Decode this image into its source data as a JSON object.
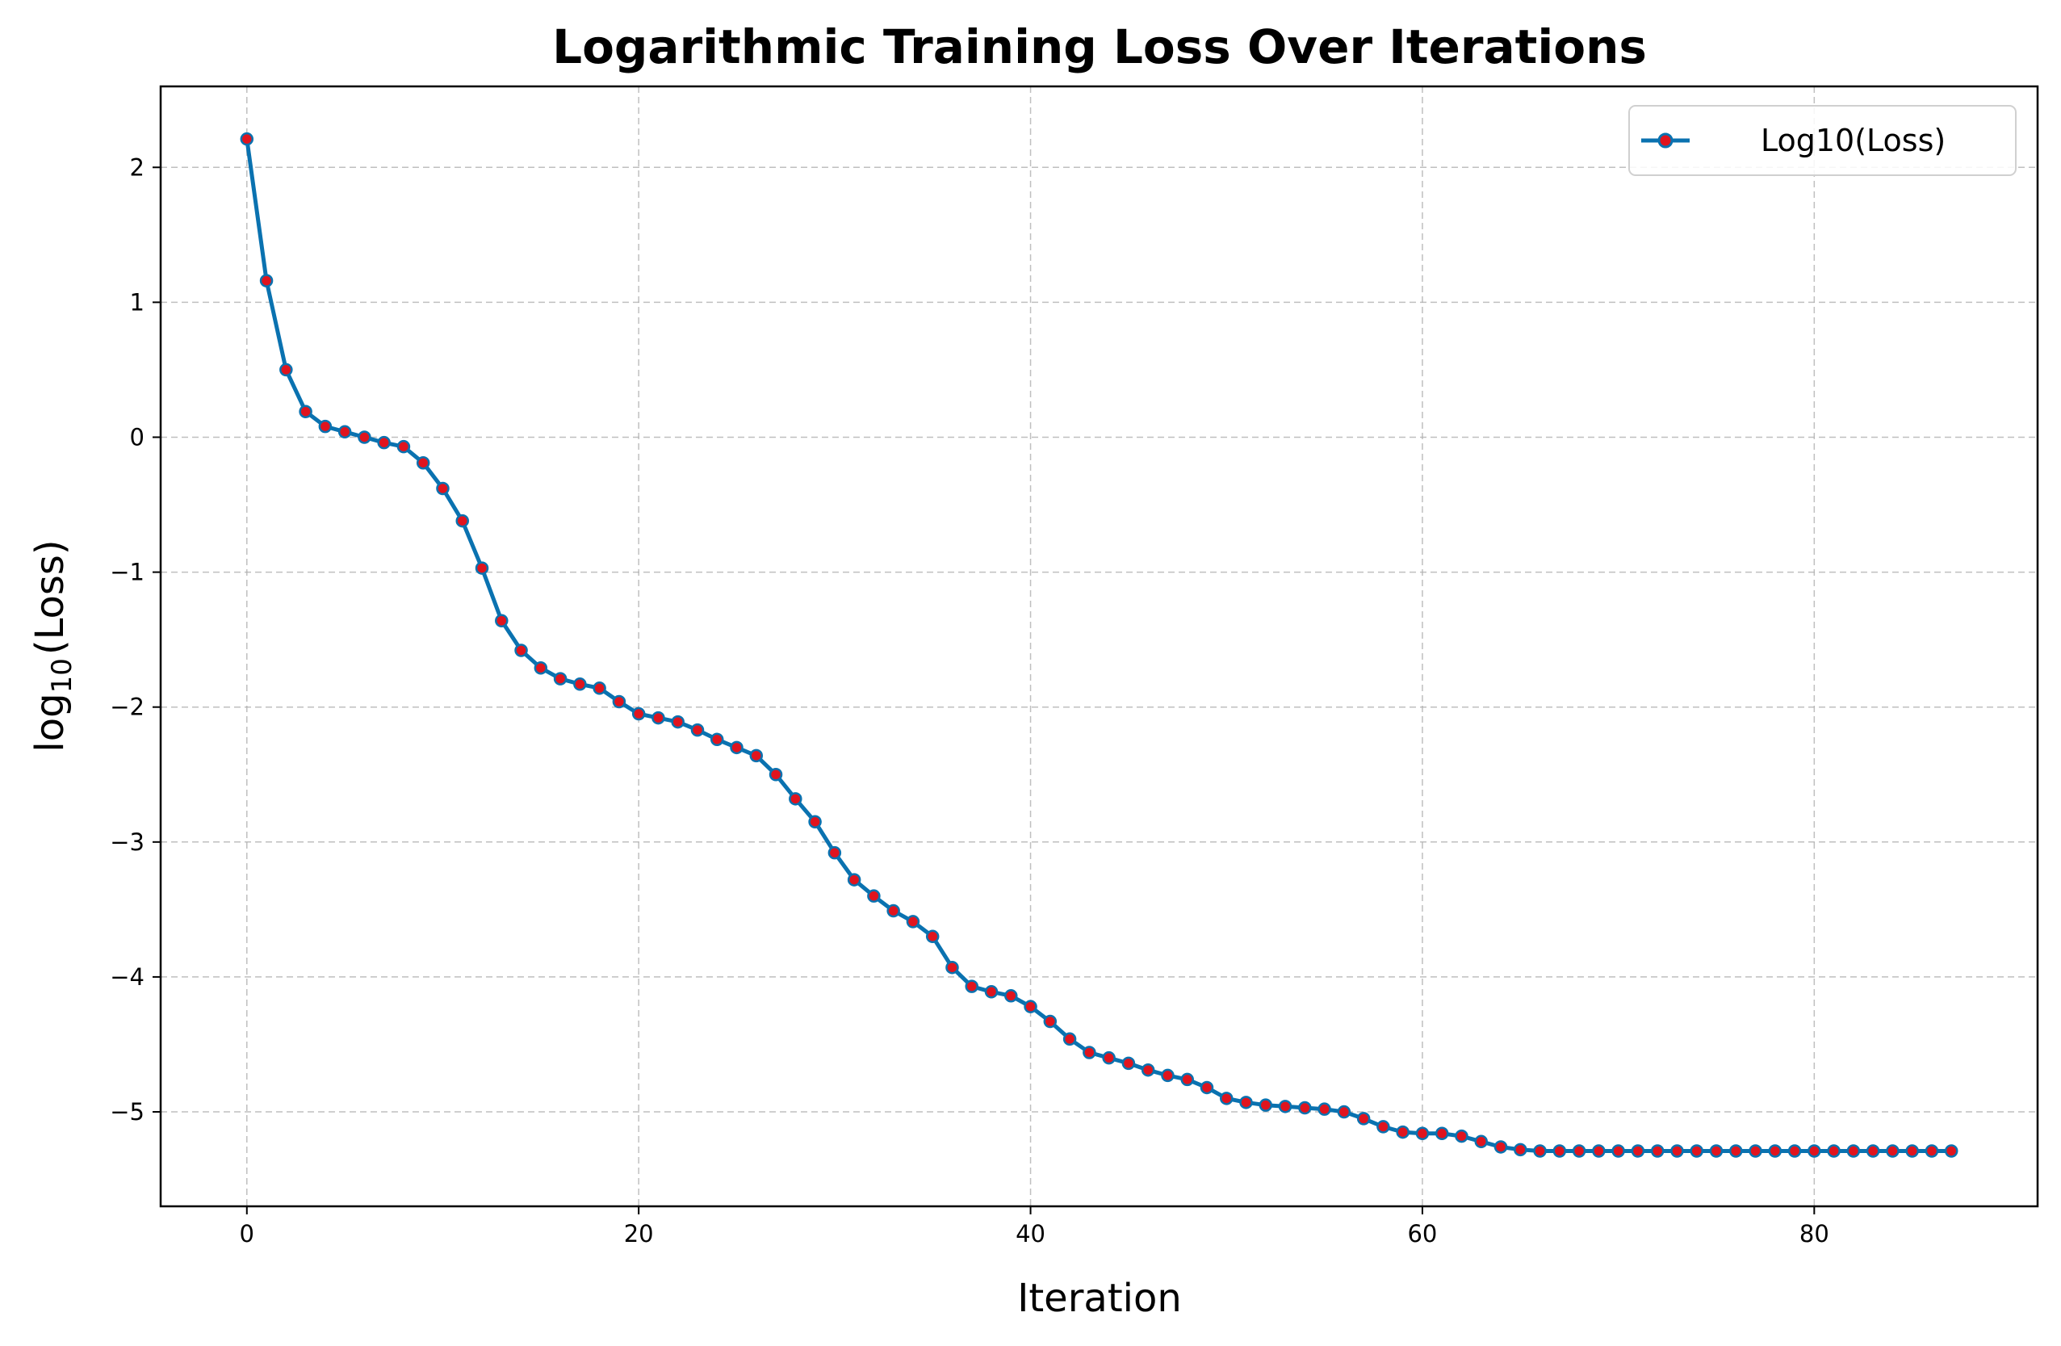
{
  "chart_data": {
    "type": "line",
    "title": "Logarithmic Training Loss Over Iterations",
    "xlabel": "Iteration",
    "ylabel": {
      "base": "log",
      "subscript": "10",
      "rest": "(Loss)"
    },
    "xlim": [
      -4.4,
      91.4
    ],
    "ylim": [
      -5.7,
      2.6
    ],
    "xticks": [
      0,
      20,
      40,
      60,
      80
    ],
    "yticks": [
      2,
      1,
      0,
      -1,
      -2,
      -3,
      -4,
      -5
    ],
    "ytick_labels": [
      "2",
      "1",
      "0",
      "−1",
      "−2",
      "−3",
      "−4",
      "−5"
    ],
    "grid": true,
    "legend_position": "top-right",
    "line_color": "#0a72b0",
    "marker_color": "#e0141e",
    "series": [
      {
        "name": "Log10(Loss)",
        "x": [
          0,
          1,
          2,
          3,
          4,
          5,
          6,
          7,
          8,
          9,
          10,
          11,
          12,
          13,
          14,
          15,
          16,
          17,
          18,
          19,
          20,
          21,
          22,
          23,
          24,
          25,
          26,
          27,
          28,
          29,
          30,
          31,
          32,
          33,
          34,
          35,
          36,
          37,
          38,
          39,
          40,
          41,
          42,
          43,
          44,
          45,
          46,
          47,
          48,
          49,
          50,
          51,
          52,
          53,
          54,
          55,
          56,
          57,
          58,
          59,
          60,
          61,
          62,
          63,
          64,
          65,
          66,
          67,
          68,
          69,
          70,
          71,
          72,
          73,
          74,
          75,
          76,
          77,
          78,
          79,
          80,
          81,
          82,
          83,
          84,
          85,
          86,
          87
        ],
        "values": [
          2.21,
          1.16,
          0.5,
          0.19,
          0.08,
          0.04,
          0.0,
          -0.04,
          -0.07,
          -0.19,
          -0.38,
          -0.62,
          -0.97,
          -1.36,
          -1.58,
          -1.71,
          -1.79,
          -1.83,
          -1.86,
          -1.96,
          -2.05,
          -2.08,
          -2.11,
          -2.17,
          -2.24,
          -2.3,
          -2.36,
          -2.5,
          -2.68,
          -2.85,
          -3.08,
          -3.28,
          -3.4,
          -3.51,
          -3.59,
          -3.7,
          -3.93,
          -4.07,
          -4.11,
          -4.14,
          -4.22,
          -4.33,
          -4.46,
          -4.56,
          -4.6,
          -4.64,
          -4.69,
          -4.73,
          -4.76,
          -4.82,
          -4.9,
          -4.93,
          -4.95,
          -4.96,
          -4.97,
          -4.98,
          -5.0,
          -5.05,
          -5.11,
          -5.15,
          -5.16,
          -5.16,
          -5.18,
          -5.22,
          -5.26,
          -5.28,
          -5.29,
          -5.29,
          -5.29,
          -5.29,
          -5.29,
          -5.29,
          -5.29,
          -5.29,
          -5.29,
          -5.29,
          -5.29,
          -5.29,
          -5.29,
          -5.29,
          -5.29,
          -5.29,
          -5.29,
          -5.29,
          -5.29,
          -5.29,
          -5.29,
          -5.29
        ]
      }
    ]
  }
}
